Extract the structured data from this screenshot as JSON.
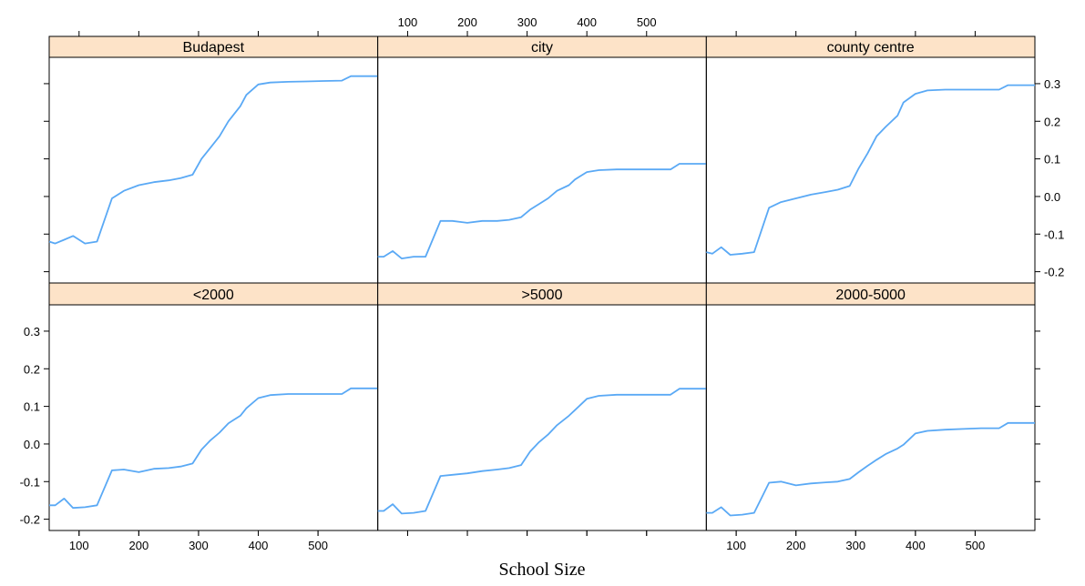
{
  "chart_data": {
    "type": "line",
    "layout": "trellis 3x2",
    "xlabel": "School Size",
    "ylabel": "",
    "xlim": [
      50,
      600
    ],
    "ylim": [
      -0.23,
      0.37
    ],
    "x_ticks": [
      100,
      200,
      300,
      400,
      500
    ],
    "y_ticks": [
      -0.2,
      -0.1,
      0.0,
      0.1,
      0.2,
      0.3
    ],
    "y_tick_labels": [
      "-0.2",
      "-0.1",
      "0.0",
      "0.1",
      "0.2",
      "0.3"
    ],
    "grid": false,
    "line_color": "#5aa9f5",
    "strip_color": "#fde3c8",
    "x": [
      50,
      60,
      75,
      90,
      110,
      130,
      155,
      175,
      200,
      225,
      250,
      270,
      290,
      305,
      320,
      335,
      350,
      370,
      380,
      400,
      420,
      450,
      480,
      510,
      540,
      555,
      600
    ],
    "panels": [
      {
        "label": "Budapest",
        "values": [
          -0.12,
          -0.125,
          -0.115,
          -0.105,
          -0.125,
          -0.12,
          -0.005,
          0.015,
          0.03,
          0.038,
          0.043,
          0.049,
          0.058,
          0.1,
          0.13,
          0.16,
          0.2,
          0.24,
          0.27,
          0.298,
          0.303,
          0.305,
          0.306,
          0.307,
          0.308,
          0.32,
          0.32
        ]
      },
      {
        "label": "city",
        "values": [
          -0.16,
          -0.16,
          -0.145,
          -0.165,
          -0.16,
          -0.16,
          -0.065,
          -0.065,
          -0.07,
          -0.065,
          -0.065,
          -0.062,
          -0.055,
          -0.035,
          -0.02,
          -0.005,
          0.015,
          0.03,
          0.045,
          0.065,
          0.07,
          0.072,
          0.072,
          0.072,
          0.072,
          0.087,
          0.087
        ]
      },
      {
        "label": "county centre",
        "values": [
          -0.148,
          -0.152,
          -0.135,
          -0.155,
          -0.152,
          -0.148,
          -0.03,
          -0.015,
          -0.005,
          0.005,
          0.012,
          0.018,
          0.028,
          0.075,
          0.115,
          0.16,
          0.185,
          0.215,
          0.25,
          0.273,
          0.282,
          0.284,
          0.284,
          0.284,
          0.284,
          0.296,
          0.296
        ]
      },
      {
        "label": "<2000",
        "values": [
          -0.163,
          -0.163,
          -0.145,
          -0.17,
          -0.168,
          -0.163,
          -0.07,
          -0.068,
          -0.075,
          -0.066,
          -0.064,
          -0.06,
          -0.052,
          -0.015,
          0.01,
          0.03,
          0.055,
          0.075,
          0.095,
          0.122,
          0.13,
          0.133,
          0.133,
          0.133,
          0.133,
          0.148,
          0.148
        ]
      },
      {
        "label": ">5000",
        "values": [
          -0.178,
          -0.178,
          -0.16,
          -0.185,
          -0.183,
          -0.178,
          -0.085,
          -0.082,
          -0.078,
          -0.072,
          -0.068,
          -0.064,
          -0.056,
          -0.02,
          0.005,
          0.025,
          0.05,
          0.075,
          0.09,
          0.12,
          0.128,
          0.131,
          0.131,
          0.131,
          0.131,
          0.147,
          0.147
        ]
      },
      {
        "label": "2000-5000",
        "values": [
          -0.183,
          -0.183,
          -0.168,
          -0.19,
          -0.188,
          -0.183,
          -0.103,
          -0.1,
          -0.11,
          -0.105,
          -0.102,
          -0.1,
          -0.093,
          -0.075,
          -0.058,
          -0.042,
          -0.027,
          -0.012,
          -0.002,
          0.028,
          0.035,
          0.038,
          0.04,
          0.042,
          0.042,
          0.056,
          0.056
        ]
      }
    ]
  }
}
